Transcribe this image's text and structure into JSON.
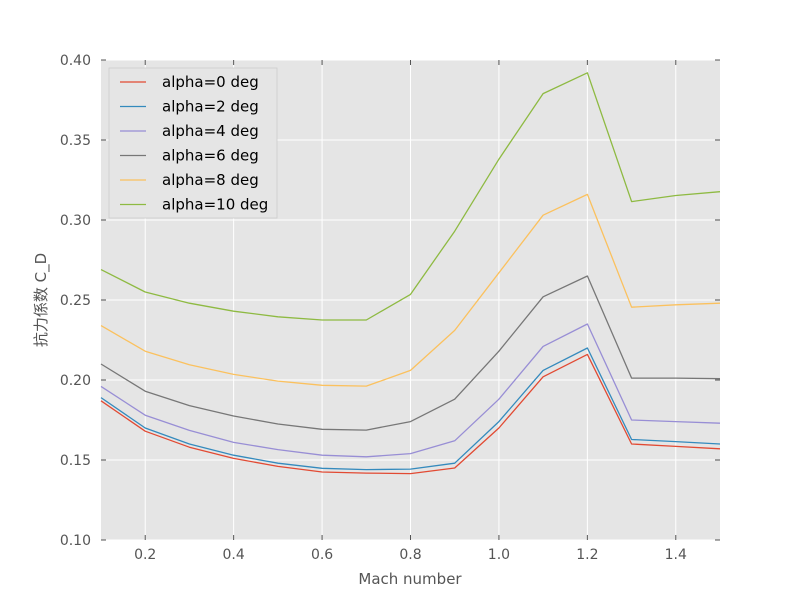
{
  "chart_data": {
    "type": "line",
    "title": "",
    "xlabel": "Mach number",
    "ylabel": "抗力係数 C_D",
    "xlim": [
      0.1,
      1.5
    ],
    "ylim": [
      0.1,
      0.4
    ],
    "xticks": [
      0.2,
      0.4,
      0.6,
      0.8,
      1.0,
      1.2,
      1.4
    ],
    "xtick_labels": [
      "0.2",
      "0.4",
      "0.6",
      "0.8",
      "1.0",
      "1.2",
      "1.4"
    ],
    "yticks": [
      0.1,
      0.15,
      0.2,
      0.25,
      0.3,
      0.35,
      0.4
    ],
    "ytick_labels": [
      "0.10",
      "0.15",
      "0.20",
      "0.25",
      "0.30",
      "0.35",
      "0.40"
    ],
    "grid": true,
    "legend_position": "top-left",
    "x": [
      0.1,
      0.2,
      0.3,
      0.4,
      0.5,
      0.6,
      0.7,
      0.8,
      0.9,
      1.0,
      1.1,
      1.2,
      1.3,
      1.4,
      1.5
    ],
    "series": [
      {
        "name": "alpha=0 deg",
        "color": "#E24A33",
        "values": [
          0.187,
          0.168,
          0.158,
          0.151,
          0.146,
          0.1425,
          0.1418,
          0.1415,
          0.145,
          0.17,
          0.202,
          0.216,
          0.16,
          0.1585,
          0.157
        ]
      },
      {
        "name": "alpha=2 deg",
        "color": "#348ABD",
        "values": [
          0.189,
          0.17,
          0.16,
          0.153,
          0.148,
          0.1448,
          0.144,
          0.1443,
          0.148,
          0.174,
          0.206,
          0.22,
          0.1628,
          0.1615,
          0.16
        ]
      },
      {
        "name": "alpha=4 deg",
        "color": "#988ED5",
        "values": [
          0.196,
          0.178,
          0.1685,
          0.161,
          0.1565,
          0.153,
          0.152,
          0.154,
          0.162,
          0.188,
          0.221,
          0.235,
          0.175,
          0.174,
          0.173
        ]
      },
      {
        "name": "alpha=6 deg",
        "color": "#777777",
        "values": [
          0.21,
          0.193,
          0.184,
          0.1775,
          0.1725,
          0.1692,
          0.1687,
          0.174,
          0.188,
          0.218,
          0.252,
          0.265,
          0.2012,
          0.2012,
          0.2008
        ]
      },
      {
        "name": "alpha=8 deg",
        "color": "#FBC15E",
        "values": [
          0.234,
          0.218,
          0.2095,
          0.2035,
          0.1993,
          0.1967,
          0.1962,
          0.206,
          0.231,
          0.267,
          0.303,
          0.316,
          0.2455,
          0.247,
          0.248
        ]
      },
      {
        "name": "alpha=10 deg",
        "color": "#8EBA42",
        "values": [
          0.269,
          0.255,
          0.248,
          0.243,
          0.2395,
          0.2375,
          0.2375,
          0.2535,
          0.293,
          0.338,
          0.379,
          0.392,
          0.3115,
          0.3153,
          0.3177
        ]
      }
    ]
  }
}
